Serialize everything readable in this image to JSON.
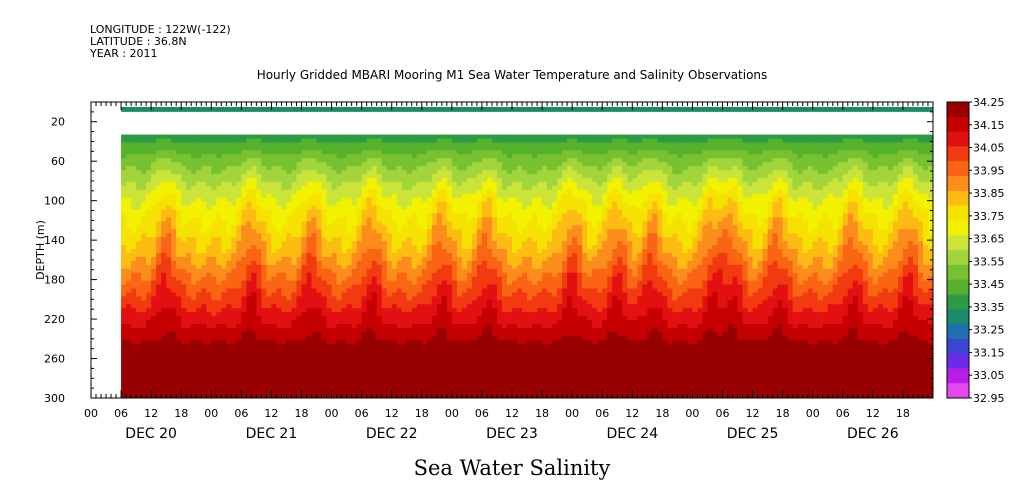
{
  "meta": {
    "longitude": "LONGITUDE : 122W(-122)",
    "latitude": "LATITUDE : 36.8N",
    "year": "YEAR : 2011"
  },
  "title": "Hourly Gridded MBARI Mooring M1 Sea Water Temperature and Salinity Observations",
  "bottom_title": "Sea Water Salinity",
  "chart_data": {
    "type": "heatmap",
    "title": "Hourly Gridded MBARI Mooring M1 Sea Water Temperature and Salinity Observations",
    "variable": "Sea Water Salinity",
    "ylabel": "DEPTH (m)",
    "y_reversed": true,
    "ylim": [
      0,
      300
    ],
    "yticks": [
      20,
      60,
      100,
      140,
      180,
      220,
      260,
      300
    ],
    "xlim_hours": [
      0,
      168
    ],
    "data_start_hour": 6,
    "hour_tick_labels": [
      "00",
      "06",
      "12",
      "18",
      "00",
      "06",
      "12",
      "18",
      "00",
      "06",
      "12",
      "18",
      "00",
      "06",
      "12",
      "18",
      "00",
      "06",
      "12",
      "18",
      "00",
      "06",
      "12",
      "18",
      "00",
      "06",
      "12",
      "18"
    ],
    "day_labels": [
      "DEC 20",
      "DEC 21",
      "DEC 22",
      "DEC 23",
      "DEC 24",
      "DEC 25",
      "DEC 26"
    ],
    "colorbar": {
      "levels": [
        "34.25",
        "34.15",
        "34.05",
        "33.95",
        "33.85",
        "33.75",
        "33.65",
        "33.55",
        "33.45",
        "33.35",
        "33.25",
        "33.15",
        "33.05",
        "32.95"
      ],
      "level_values": [
        34.25,
        34.15,
        34.05,
        33.95,
        33.85,
        33.75,
        33.65,
        33.55,
        33.45,
        33.35,
        33.25,
        33.15,
        33.05,
        32.95
      ],
      "colors": [
        "#990000",
        "#c40000",
        "#e21010",
        "#f23a10",
        "#fa6514",
        "#fc8c1c",
        "#fdbc14",
        "#f5e200",
        "#f2f200",
        "#cae43a",
        "#a2d43c",
        "#78c232",
        "#56b22c",
        "#2e9a46",
        "#1a8a6a",
        "#2070b0",
        "#3a46d0",
        "#6a2cea",
        "#b81ee8",
        "#e646f0"
      ]
    },
    "surface_band": {
      "depth_top": 5,
      "depth_bottom": 10,
      "salinity": 33.32
    },
    "missing_band": {
      "depth_top": 10,
      "depth_bottom": 33
    },
    "profile": {
      "depths": [
        33,
        40,
        50,
        60,
        70,
        80,
        90,
        100,
        110,
        120,
        130,
        140,
        150,
        160,
        170,
        180,
        190,
        200,
        210,
        220,
        230,
        240,
        250,
        260,
        270,
        280,
        290,
        300
      ],
      "salinity": [
        33.37,
        33.4,
        33.45,
        33.5,
        33.54,
        33.58,
        33.62,
        33.66,
        33.69,
        33.72,
        33.75,
        33.78,
        33.81,
        33.85,
        33.89,
        33.93,
        33.97,
        34.01,
        34.05,
        34.09,
        34.13,
        34.17,
        34.22,
        34.26,
        34.24,
        34.2,
        34.2,
        34.2
      ]
    },
    "upwelling_events_hours": [
      15,
      32,
      44,
      56,
      70,
      79,
      96,
      105,
      112,
      124,
      128,
      137,
      152,
      163
    ]
  }
}
